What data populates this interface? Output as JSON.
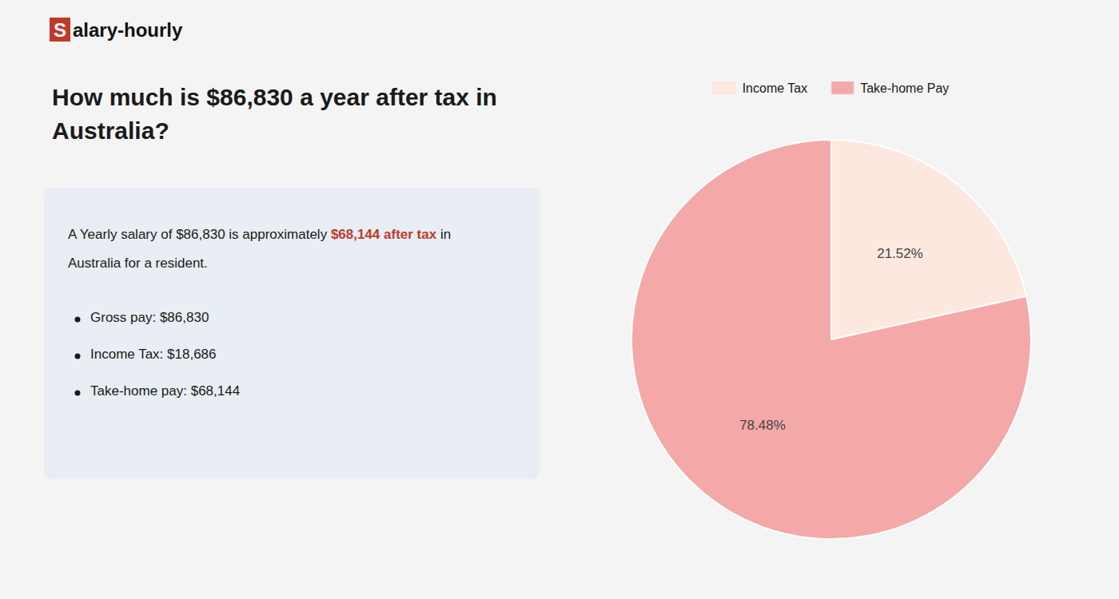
{
  "chart_data": {
    "type": "pie",
    "title": [
      "How much is $86,830 a year after tax in",
      "Australia?"
    ],
    "annotations": {
      "logo": [
        "S",
        "alary-hourly"
      ],
      "summary": [
        [
          "A Yearly salary of $86,830 is approximately ",
          "$68,144 after tax",
          " in"
        ],
        [
          "Australia for a resident."
        ]
      ],
      "bullets": [
        "Gross pay: $86,830",
        "Income Tax: $18,686",
        "Take-home pay: $68,144"
      ]
    },
    "accent_color": "#c0392b",
    "categories": [
      "Income Tax",
      "Take-home Pay"
    ],
    "values": [
      21.52,
      78.48
    ],
    "value_labels": [
      "21.52%",
      "78.48%"
    ],
    "colors": [
      "#fde8df",
      "#f5a8a8"
    ],
    "data_labels": true,
    "legend": "top"
  }
}
